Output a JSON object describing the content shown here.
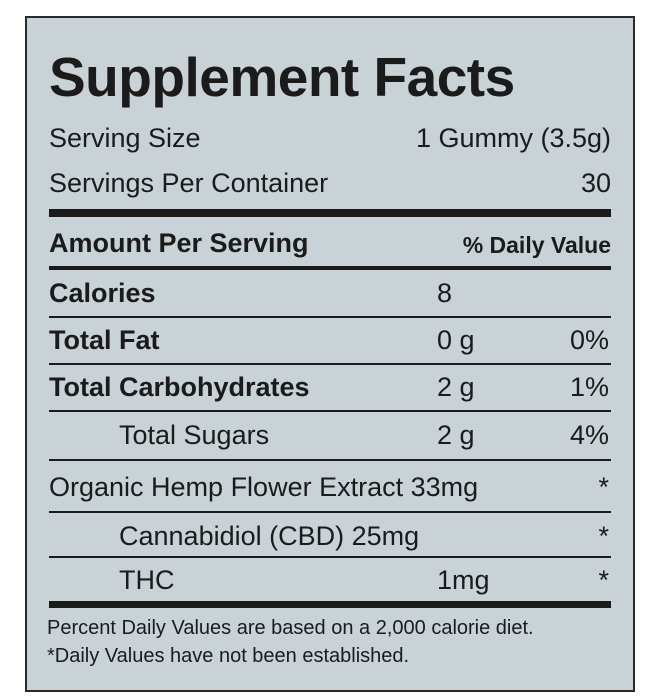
{
  "title": "Supplement Facts",
  "serving_size": {
    "label": "Serving Size",
    "value": "1 Gummy (3.5g)"
  },
  "servings_per_container": {
    "label": "Servings Per Container",
    "value": "30"
  },
  "header": {
    "amount": "Amount Per Serving",
    "daily_value": "% Daily Value"
  },
  "rows": [
    {
      "label": "Calories",
      "amount": "8"
    },
    {
      "label": "Total Fat",
      "amount": "0 g",
      "daily_value": "0%"
    },
    {
      "label": "Total Carbohydrates",
      "amount": "2 g",
      "daily_value": "1%"
    },
    {
      "label": "Total Sugars",
      "amount": "2 g",
      "daily_value": "4%"
    },
    {
      "label": "Organic Hemp Flower Extract 33mg",
      "daily_value": "*"
    },
    {
      "label": "Cannabidiol (CBD) 25mg",
      "daily_value": "*"
    },
    {
      "label": "THC",
      "amount": "1mg",
      "daily_value": "*"
    }
  ],
  "footnotes": [
    "Percent Daily Values are based on a 2,000 calorie diet.",
    "*Daily Values have not been established."
  ]
}
